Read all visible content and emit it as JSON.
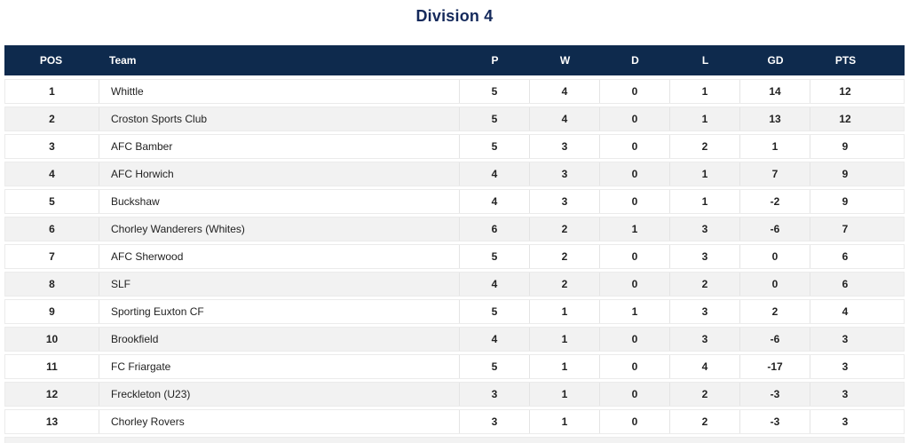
{
  "title": "Division 4",
  "table": {
    "headers": {
      "pos": "POS",
      "team": "Team",
      "p": "P",
      "w": "W",
      "d": "D",
      "l": "L",
      "gd": "GD",
      "pts": "PTS"
    },
    "rows": [
      {
        "pos": "1",
        "team": "Whittle",
        "p": "5",
        "w": "4",
        "d": "0",
        "l": "1",
        "gd": "14",
        "pts": "12"
      },
      {
        "pos": "2",
        "team": "Croston Sports Club",
        "p": "5",
        "w": "4",
        "d": "0",
        "l": "1",
        "gd": "13",
        "pts": "12"
      },
      {
        "pos": "3",
        "team": "AFC Bamber",
        "p": "5",
        "w": "3",
        "d": "0",
        "l": "2",
        "gd": "1",
        "pts": "9"
      },
      {
        "pos": "4",
        "team": "AFC Horwich",
        "p": "4",
        "w": "3",
        "d": "0",
        "l": "1",
        "gd": "7",
        "pts": "9"
      },
      {
        "pos": "5",
        "team": "Buckshaw",
        "p": "4",
        "w": "3",
        "d": "0",
        "l": "1",
        "gd": "-2",
        "pts": "9"
      },
      {
        "pos": "6",
        "team": "Chorley Wanderers (Whites)",
        "p": "6",
        "w": "2",
        "d": "1",
        "l": "3",
        "gd": "-6",
        "pts": "7"
      },
      {
        "pos": "7",
        "team": "AFC Sherwood",
        "p": "5",
        "w": "2",
        "d": "0",
        "l": "3",
        "gd": "0",
        "pts": "6"
      },
      {
        "pos": "8",
        "team": "SLF",
        "p": "4",
        "w": "2",
        "d": "0",
        "l": "2",
        "gd": "0",
        "pts": "6"
      },
      {
        "pos": "9",
        "team": "Sporting Euxton CF",
        "p": "5",
        "w": "1",
        "d": "1",
        "l": "3",
        "gd": "2",
        "pts": "4"
      },
      {
        "pos": "10",
        "team": "Brookfield",
        "p": "4",
        "w": "1",
        "d": "0",
        "l": "3",
        "gd": "-6",
        "pts": "3"
      },
      {
        "pos": "11",
        "team": "FC Friargate",
        "p": "5",
        "w": "1",
        "d": "0",
        "l": "4",
        "gd": "-17",
        "pts": "3"
      },
      {
        "pos": "12",
        "team": "Freckleton (U23)",
        "p": "3",
        "w": "1",
        "d": "0",
        "l": "2",
        "gd": "-3",
        "pts": "3"
      },
      {
        "pos": "13",
        "team": "Chorley Rovers",
        "p": "3",
        "w": "1",
        "d": "0",
        "l": "2",
        "gd": "-3",
        "pts": "3"
      }
    ]
  },
  "colors": {
    "header_bg": "#0e2a4d",
    "title_text": "#14295b",
    "row_bg": "#ffffff",
    "row_alt_bg": "#f2f2f2",
    "row_border": "#ebebeb",
    "body_text": "#222222"
  }
}
